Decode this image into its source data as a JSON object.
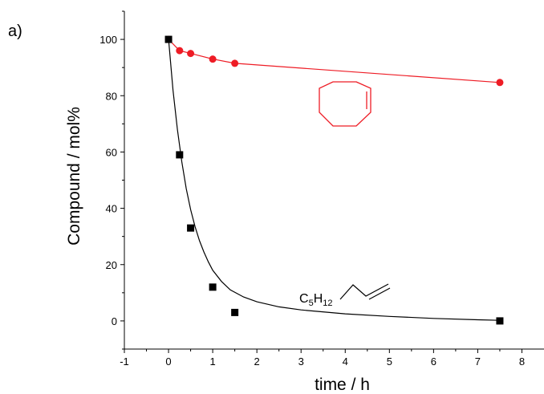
{
  "panel_label": "a)",
  "chart_data": {
    "type": "scatter",
    "title": "",
    "xlabel": "time / h",
    "ylabel": "Compound / mol%",
    "xlim": [
      -1,
      8.5
    ],
    "ylim": [
      -10,
      110
    ],
    "x_ticks": [
      -1,
      0,
      1,
      2,
      3,
      4,
      5,
      6,
      7,
      8
    ],
    "y_ticks": [
      0,
      20,
      40,
      60,
      80,
      100
    ],
    "grid": false,
    "legend": "none",
    "series": [
      {
        "color": "#ee1c25",
        "marker": "circle",
        "points": [
          [
            0,
            100
          ],
          [
            0.25,
            96
          ],
          [
            0.5,
            95
          ],
          [
            1,
            93
          ],
          [
            1.5,
            91.5
          ],
          [
            7.5,
            84.7
          ]
        ],
        "fit": [
          [
            0,
            100
          ],
          [
            0.25,
            96
          ],
          [
            0.5,
            95
          ],
          [
            1,
            93
          ],
          [
            1.5,
            91.5
          ],
          [
            7.5,
            84.7
          ]
        ]
      },
      {
        "color": "#000000",
        "marker": "square",
        "points": [
          [
            0,
            100
          ],
          [
            0.25,
            59
          ],
          [
            0.5,
            33
          ],
          [
            1,
            12
          ],
          [
            1.5,
            3
          ],
          [
            7.5,
            0
          ]
        ],
        "fit": [
          [
            0,
            100
          ],
          [
            0.1,
            82
          ],
          [
            0.2,
            68
          ],
          [
            0.3,
            56.5
          ],
          [
            0.4,
            47
          ],
          [
            0.5,
            39.5
          ],
          [
            0.6,
            33.5
          ],
          [
            0.7,
            28.5
          ],
          [
            0.8,
            24.5
          ],
          [
            0.9,
            21
          ],
          [
            1.0,
            18
          ],
          [
            1.2,
            14
          ],
          [
            1.4,
            11
          ],
          [
            1.7,
            8.5
          ],
          [
            2.0,
            6.8
          ],
          [
            2.5,
            5
          ],
          [
            3.0,
            3.9
          ],
          [
            4.0,
            2.5
          ],
          [
            5.0,
            1.6
          ],
          [
            6.0,
            0.9
          ],
          [
            7.0,
            0.4
          ],
          [
            7.5,
            0.2
          ]
        ]
      }
    ],
    "annotations": {
      "alkene_label": {
        "base": "C",
        "sub1": "5",
        "mid": "H",
        "sub2": "12"
      }
    }
  }
}
